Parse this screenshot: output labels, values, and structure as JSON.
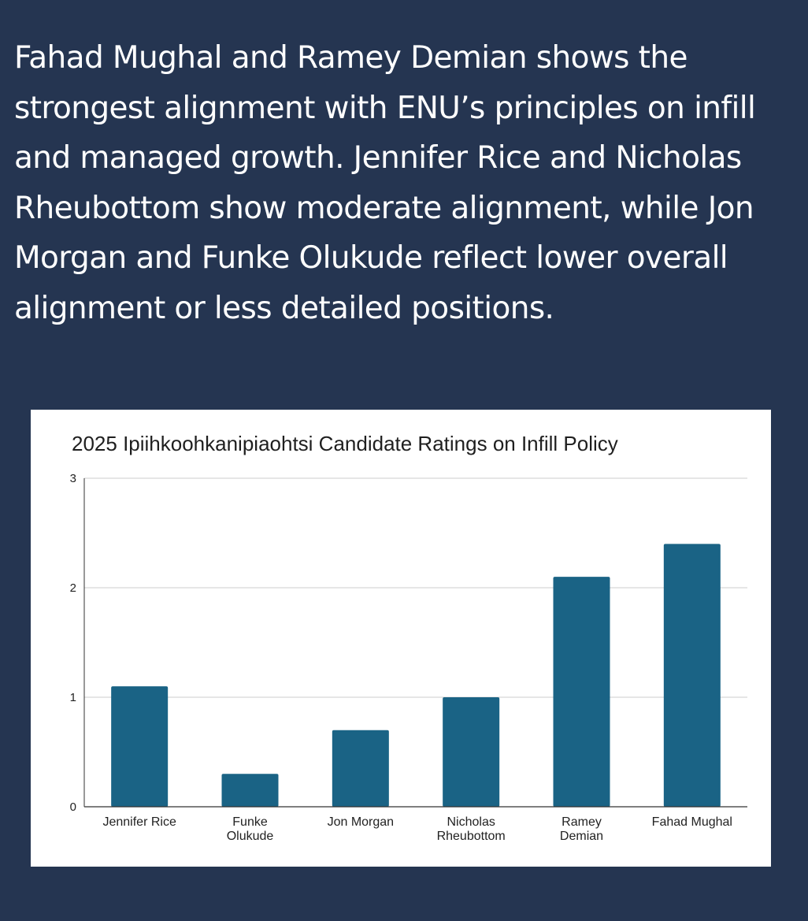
{
  "post": {
    "text": "Fahad Mughal and Ramey Demian shows the strongest alignment with ENU’s principles on infill and managed growth. Jennifer Rice and Nicholas Rheubottom show moderate alignment, while Jon Morgan and Funke Olukude reflect lower overall alignment or less detailed positions."
  },
  "colors": {
    "page_background": "#253551",
    "bar": "#1a6385",
    "gridline": "#cccccc",
    "axis": "#333333"
  },
  "chart_data": {
    "type": "bar",
    "title": "2025 Ipiihkoohkanipiaohtsi Candidate Ratings on Infill Policy",
    "xlabel": "",
    "ylabel": "",
    "categories": [
      [
        "Jennifer Rice"
      ],
      [
        "Funke",
        "Olukude"
      ],
      [
        "Jon Morgan"
      ],
      [
        "Nicholas",
        "Rheubottom"
      ],
      [
        "Ramey",
        "Demian"
      ],
      [
        "Fahad Mughal"
      ]
    ],
    "values": [
      1.1,
      0.3,
      0.7,
      1.0,
      2.1,
      2.4
    ],
    "ylim": [
      0,
      3
    ],
    "yticks": [
      "0",
      "1",
      "2",
      "3"
    ],
    "grid": true,
    "legend": "none"
  }
}
